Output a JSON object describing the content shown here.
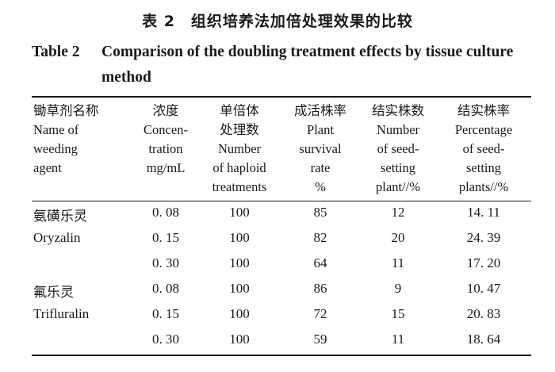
{
  "title": {
    "zh": "表 2　组织培养法加倍处理效果的比较",
    "en_label": "Table 2",
    "en_line1": "Comparison of the doubling treatment effects by tissue culture",
    "en_line2": "method"
  },
  "headers": [
    {
      "zh": "锄草剂名称",
      "en": "Name of\nweeding\nagent"
    },
    {
      "zh": "浓度",
      "en": "Concen-\ntration\nmg/mL"
    },
    {
      "zh": "单倍体\n处理数",
      "en": "Number\nof haploid\ntreatments"
    },
    {
      "zh": "成活株率",
      "en": "Plant\nsurvival\nrate\n%"
    },
    {
      "zh": "结实株数",
      "en": "Number\nof seed-\nsetting\nplant//%"
    },
    {
      "zh": "结实株率",
      "en": "Percentage\nof seed-\nsetting\nplants//%"
    }
  ],
  "rows": [
    {
      "agent": "氨磺乐灵",
      "agent_zh": true,
      "conc": "0. 08",
      "num": "100",
      "survival": "85",
      "seed_num": "12",
      "seed_pct": "14. 11"
    },
    {
      "agent": "Oryzalin",
      "agent_zh": false,
      "conc": "0. 15",
      "num": "100",
      "survival": "82",
      "seed_num": "20",
      "seed_pct": "24. 39"
    },
    {
      "agent": "",
      "agent_zh": false,
      "conc": "0. 30",
      "num": "100",
      "survival": "64",
      "seed_num": "11",
      "seed_pct": "17. 20"
    },
    {
      "agent": "氟乐灵",
      "agent_zh": true,
      "conc": "0. 08",
      "num": "100",
      "survival": "86",
      "seed_num": "9",
      "seed_pct": "10. 47"
    },
    {
      "agent": "Trifluralin",
      "agent_zh": false,
      "conc": "0. 15",
      "num": "100",
      "survival": "72",
      "seed_num": "15",
      "seed_pct": "20. 83"
    },
    {
      "agent": "",
      "agent_zh": false,
      "conc": "0. 30",
      "num": "100",
      "survival": "59",
      "seed_num": "11",
      "seed_pct": "18. 64"
    }
  ]
}
